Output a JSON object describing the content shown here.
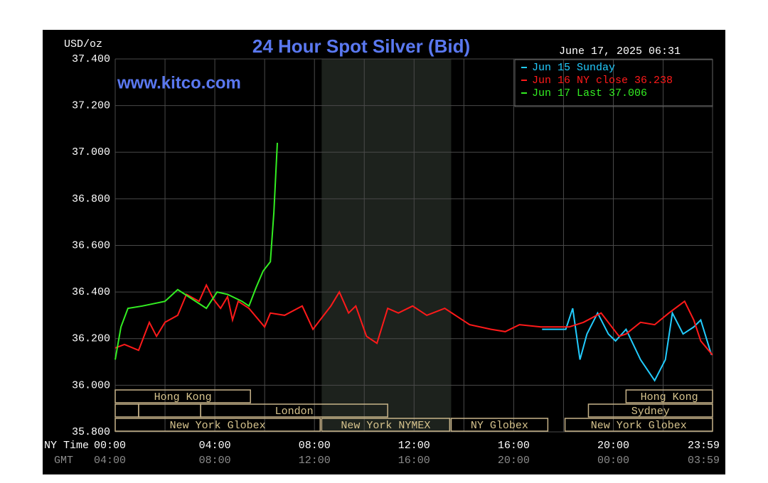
{
  "chart_data": {
    "type": "line",
    "title": "24 Hour Spot Silver (Bid)",
    "y_label": "USD/oz",
    "watermark": "www.kitco.com",
    "timestamp": "June 17, 2025 06:31",
    "x_label": "NY Time",
    "x2_label": "GMT",
    "xlim": [
      0,
      23.983
    ],
    "xticks": [
      {
        "value": 0,
        "label": "00:00"
      },
      {
        "value": 4,
        "label": "04:00"
      },
      {
        "value": 8,
        "label": "08:00"
      },
      {
        "value": 12,
        "label": "12:00"
      },
      {
        "value": 16,
        "label": "16:00"
      },
      {
        "value": 20,
        "label": "20:00"
      },
      {
        "value": 23.983,
        "label": "23:59"
      }
    ],
    "x2ticks": [
      {
        "value": 0,
        "label": "04:00"
      },
      {
        "value": 4,
        "label": "08:00"
      },
      {
        "value": 8,
        "label": "12:00"
      },
      {
        "value": 12,
        "label": "16:00"
      },
      {
        "value": 16,
        "label": "20:00"
      },
      {
        "value": 20,
        "label": "00:00"
      },
      {
        "value": 23.983,
        "label": "03:59"
      }
    ],
    "x_minor_grid": [
      2,
      6,
      10,
      14,
      18,
      22
    ],
    "ylim": [
      35.8,
      37.4
    ],
    "yticks": [
      {
        "value": 35.8,
        "label": "35.800"
      },
      {
        "value": 36.0,
        "label": "36.000"
      },
      {
        "value": 36.2,
        "label": "36.200"
      },
      {
        "value": 36.4,
        "label": "36.400"
      },
      {
        "value": 36.6,
        "label": "36.600"
      },
      {
        "value": 36.8,
        "label": "36.800"
      },
      {
        "value": 37.0,
        "label": "37.000"
      },
      {
        "value": 37.2,
        "label": "37.200"
      },
      {
        "value": 37.4,
        "label": "37.400"
      }
    ],
    "grid": true,
    "legend": "top-right",
    "highlight_range": [
      8.29,
      13.49
    ],
    "series": [
      {
        "name": "Jun 15 Sunday",
        "color": "#22ccff",
        "x": [
          17.14,
          18.09,
          18.37,
          18.66,
          18.94,
          19.37,
          19.8,
          20.09,
          20.51,
          21.09,
          21.66,
          22.09,
          22.37,
          22.8,
          23.23,
          23.51,
          23.94
        ],
        "values": [
          36.24,
          36.24,
          36.33,
          36.11,
          36.22,
          36.31,
          36.22,
          36.19,
          36.24,
          36.11,
          36.02,
          36.11,
          36.31,
          36.22,
          36.25,
          36.28,
          36.13
        ]
      },
      {
        "name": "Jun 16 NY close 36.238",
        "color": "#ff1a1a",
        "x": [
          0,
          0.37,
          0.94,
          1.37,
          1.66,
          2,
          2.51,
          2.86,
          3.37,
          3.66,
          3.94,
          4.23,
          4.51,
          4.71,
          4.94,
          5.37,
          6,
          6.23,
          6.8,
          7.51,
          7.94,
          8.37,
          8.66,
          9,
          9.37,
          9.66,
          10.09,
          10.51,
          10.94,
          11.37,
          11.94,
          12.51,
          13.23,
          13.66,
          14.23,
          15.09,
          15.66,
          16.23,
          17.09,
          18.23,
          18.8,
          19.51,
          19.94,
          20.23,
          20.51,
          21.09,
          21.66,
          22.23,
          22.86,
          23.23,
          23.51,
          23.98
        ],
        "values": [
          36.16,
          36.175,
          36.15,
          36.27,
          36.21,
          36.27,
          36.3,
          36.39,
          36.36,
          36.43,
          36.37,
          36.33,
          36.38,
          36.28,
          36.36,
          36.33,
          36.25,
          36.31,
          36.3,
          36.34,
          36.24,
          36.3,
          36.34,
          36.4,
          36.31,
          36.34,
          36.21,
          36.18,
          36.33,
          36.31,
          36.34,
          36.3,
          36.33,
          36.3,
          36.26,
          36.24,
          36.23,
          36.26,
          36.25,
          36.25,
          36.27,
          36.31,
          36.25,
          36.21,
          36.22,
          36.27,
          36.26,
          36.31,
          36.36,
          36.28,
          36.19,
          36.13
        ]
      },
      {
        "name": "Jun 17 Last 37.006",
        "color": "#33ee22",
        "x": [
          0,
          0.23,
          0.51,
          1.09,
          2,
          2.51,
          3.09,
          3.66,
          4.09,
          4.51,
          5.09,
          5.37,
          5.66,
          5.94,
          6.23,
          6.37,
          6.51
        ],
        "values": [
          36.11,
          36.25,
          36.33,
          36.34,
          36.36,
          36.41,
          36.37,
          36.33,
          36.4,
          36.39,
          36.36,
          36.34,
          36.42,
          36.49,
          36.53,
          36.74,
          37.04
        ]
      }
    ],
    "session_rows": [
      [
        {
          "label": "Hong Kong",
          "start": 0,
          "end": 5.43
        },
        {
          "label": "Hong Kong",
          "start": 20.51,
          "end": 23.983
        }
      ],
      [
        {
          "label": null,
          "start": 0,
          "end": 0.94
        },
        {
          "label": null,
          "start": 0.94,
          "end": 3.43
        },
        {
          "label": "London",
          "start": 3.43,
          "end": 10.94
        },
        {
          "label": "Sydney",
          "start": 19,
          "end": 23.983
        }
      ],
      [
        {
          "label": "New York Globex",
          "start": 0,
          "end": 8.23
        },
        {
          "label": "New York NYMEX",
          "start": 8.29,
          "end": 13.43
        },
        {
          "label": "NY Globex",
          "start": 13.49,
          "end": 17.37
        },
        {
          "label": "New York Globex",
          "start": 18.06,
          "end": 23.983
        }
      ]
    ]
  }
}
